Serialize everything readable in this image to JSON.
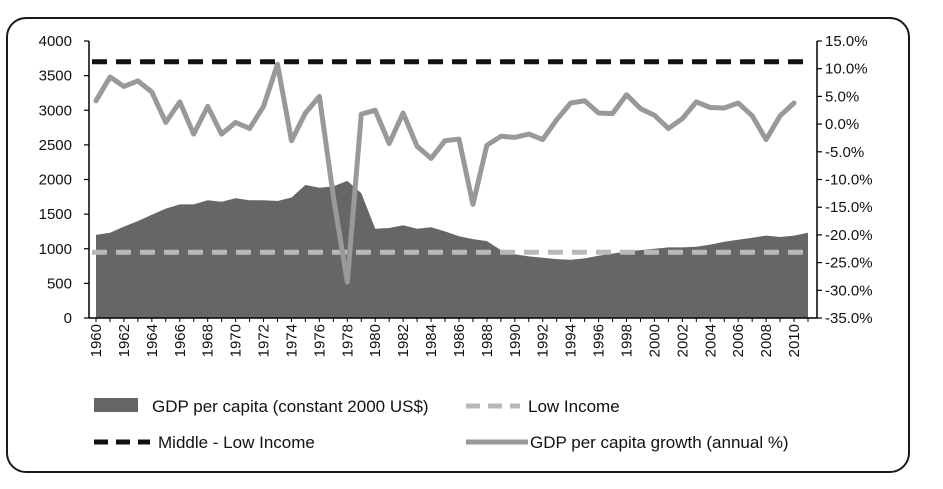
{
  "chart_data": {
    "type": "area+line",
    "title": "",
    "xlabel": "",
    "ylabel_left": "",
    "ylabel_right": "",
    "years": [
      1960,
      1961,
      1962,
      1963,
      1964,
      1965,
      1966,
      1967,
      1968,
      1969,
      1970,
      1971,
      1972,
      1973,
      1974,
      1975,
      1976,
      1977,
      1978,
      1979,
      1980,
      1981,
      1982,
      1983,
      1984,
      1985,
      1986,
      1987,
      1988,
      1989,
      1990,
      1991,
      1992,
      1993,
      1994,
      1995,
      1996,
      1997,
      1998,
      1999,
      2000,
      2001,
      2002,
      2003,
      2004,
      2005,
      2006,
      2007,
      2008,
      2009,
      2010,
      2011
    ],
    "x_tick_labels": [
      "1960",
      "1962",
      "1964",
      "1966",
      "1968",
      "1970",
      "1972",
      "1974",
      "1976",
      "1978",
      "1980",
      "1982",
      "1984",
      "1986",
      "1988",
      "1990",
      "1992",
      "1994",
      "1996",
      "1998",
      "2000",
      "2002",
      "2004",
      "2006",
      "2008",
      "2010"
    ],
    "left_axis": {
      "ylim": [
        0,
        4000
      ],
      "ticks": [
        "0",
        "500",
        "1000",
        "1500",
        "2000",
        "2500",
        "3000",
        "3500",
        "4000"
      ]
    },
    "right_axis": {
      "ylim": [
        -35,
        15
      ],
      "ticks": [
        "15.0%",
        "10.0%",
        "5.0%",
        "0.0%",
        "-5.0%",
        "-10.0%",
        "-15.0%",
        "-20.0%",
        "-25.0%",
        "-30.0%",
        "-35.0%"
      ]
    },
    "series": [
      {
        "name": "GDP per capita (constant 2000 US$)",
        "type": "area",
        "axis": "left",
        "color": "#666666",
        "values": [
          1200,
          1230,
          1320,
          1400,
          1490,
          1580,
          1640,
          1640,
          1700,
          1680,
          1730,
          1700,
          1700,
          1690,
          1740,
          1920,
          1880,
          1900,
          1980,
          1800,
          1290,
          1300,
          1340,
          1290,
          1310,
          1250,
          1180,
          1140,
          1110,
          980,
          920,
          890,
          870,
          850,
          840,
          860,
          900,
          930,
          960,
          980,
          1000,
          1020,
          1020,
          1030,
          1060,
          1100,
          1130,
          1160,
          1190,
          1170,
          1190,
          1230
        ]
      },
      {
        "name": "Low Income",
        "type": "line",
        "style": "dashed",
        "axis": "left",
        "color": "#b8b8b8",
        "values": [
          950
        ]
      },
      {
        "name": "Middle - Low Income",
        "type": "line",
        "style": "dashed",
        "axis": "left",
        "color": "#111111",
        "values": [
          3700
        ]
      },
      {
        "name": "GDP per capita growth (annual %)",
        "type": "line",
        "axis": "right",
        "color": "#999999",
        "values": [
          4.2,
          8.5,
          6.8,
          7.8,
          5.8,
          0.3,
          4.0,
          -1.8,
          3.2,
          -1.8,
          0.3,
          -0.8,
          3.2,
          10.8,
          -3.0,
          2.0,
          5.0,
          -13.0,
          -28.5,
          1.8,
          2.5,
          -3.5,
          2.0,
          -4.0,
          -6.2,
          -3.0,
          -2.7,
          -14.5,
          -3.8,
          -2.2,
          -2.4,
          -1.8,
          -2.8,
          0.8,
          3.8,
          4.2,
          2.0,
          1.9,
          5.3,
          2.8,
          1.6,
          -0.8,
          1.0,
          4.0,
          3.0,
          2.9,
          3.8,
          1.5,
          -2.8,
          1.5,
          3.8
        ]
      }
    ],
    "legend": [
      {
        "label": "GDP per capita (constant 2000 US$)",
        "symbol": "area",
        "color": "#666666"
      },
      {
        "label": "Low Income",
        "symbol": "dashed",
        "color": "#b8b8b8"
      },
      {
        "label": "Middle - Low Income",
        "symbol": "dashed",
        "color": "#111111"
      },
      {
        "label": "GDP per capita growth (annual %)",
        "symbol": "line",
        "color": "#999999"
      }
    ]
  }
}
